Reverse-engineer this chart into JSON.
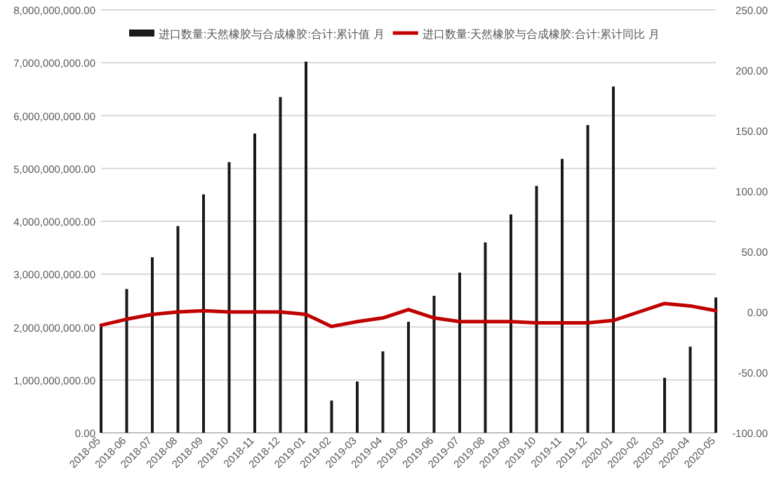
{
  "chart_data": {
    "type": "bar",
    "categories": [
      "2018-05",
      "2018-06",
      "2018-07",
      "2018-08",
      "2018-09",
      "2018-10",
      "2018-11",
      "2018-12",
      "2019-01",
      "2019-02",
      "2019-03",
      "2019-04",
      "2019-05",
      "2019-06",
      "2019-07",
      "2019-08",
      "2019-09",
      "2019-10",
      "2019-11",
      "2019-12",
      "2020-01",
      "2020-02",
      "2020-03",
      "2020-04",
      "2020-05"
    ],
    "series": [
      {
        "name": "进口数量:天然橡胶与合成橡胶:合计:累计值 月",
        "color": "#1a1a1a",
        "values": [
          2020000000,
          2720000000,
          3320000000,
          3910000000,
          4510000000,
          5120000000,
          5660000000,
          6350000000,
          7020000000,
          610000000,
          970000000,
          1540000000,
          2100000000,
          2590000000,
          3030000000,
          3600000000,
          4130000000,
          4670000000,
          5180000000,
          5820000000,
          6550000000,
          null,
          1040000000,
          1630000000,
          2560000000
        ]
      },
      {
        "name": "进口数量:天然橡胶与合成橡胶:合计:累计同比 月",
        "type": "line",
        "axis": "y2",
        "color": "#c00000",
        "values": [
          -11,
          -6,
          -2,
          0,
          1,
          0,
          0,
          0,
          -2,
          -12,
          -8,
          -5,
          2,
          -5,
          -8,
          -8,
          -8,
          -9,
          -9,
          -9,
          -7,
          0,
          7,
          5,
          1
        ]
      }
    ],
    "ylim": [
      0,
      8000000000
    ],
    "yticks": [
      {
        "value": 0,
        "label": "0.00"
      },
      {
        "value": 1000000000,
        "label": "1,000,000,000.00"
      },
      {
        "value": 2000000000,
        "label": "2,000,000,000.00"
      },
      {
        "value": 3000000000,
        "label": "3,000,000,000.00"
      },
      {
        "value": 4000000000,
        "label": "4,000,000,000.00"
      },
      {
        "value": 5000000000,
        "label": "5,000,000,000.00"
      },
      {
        "value": 6000000000,
        "label": "6,000,000,000.00"
      },
      {
        "value": 7000000000,
        "label": "7,000,000,000.00"
      },
      {
        "value": 8000000000,
        "label": "8,000,000,000.00"
      }
    ],
    "y2lim": [
      -100,
      250
    ],
    "y2ticks": [
      {
        "value": -100,
        "label": "-100.00"
      },
      {
        "value": -50,
        "label": "-50.00"
      },
      {
        "value": 0,
        "label": "0.00"
      },
      {
        "value": 50,
        "label": "50.00"
      },
      {
        "value": 100,
        "label": "100.00"
      },
      {
        "value": 150,
        "label": "150.00"
      },
      {
        "value": 200,
        "label": "200.00"
      },
      {
        "value": 250,
        "label": "250.00"
      }
    ],
    "grid": "y",
    "legend": "top"
  }
}
